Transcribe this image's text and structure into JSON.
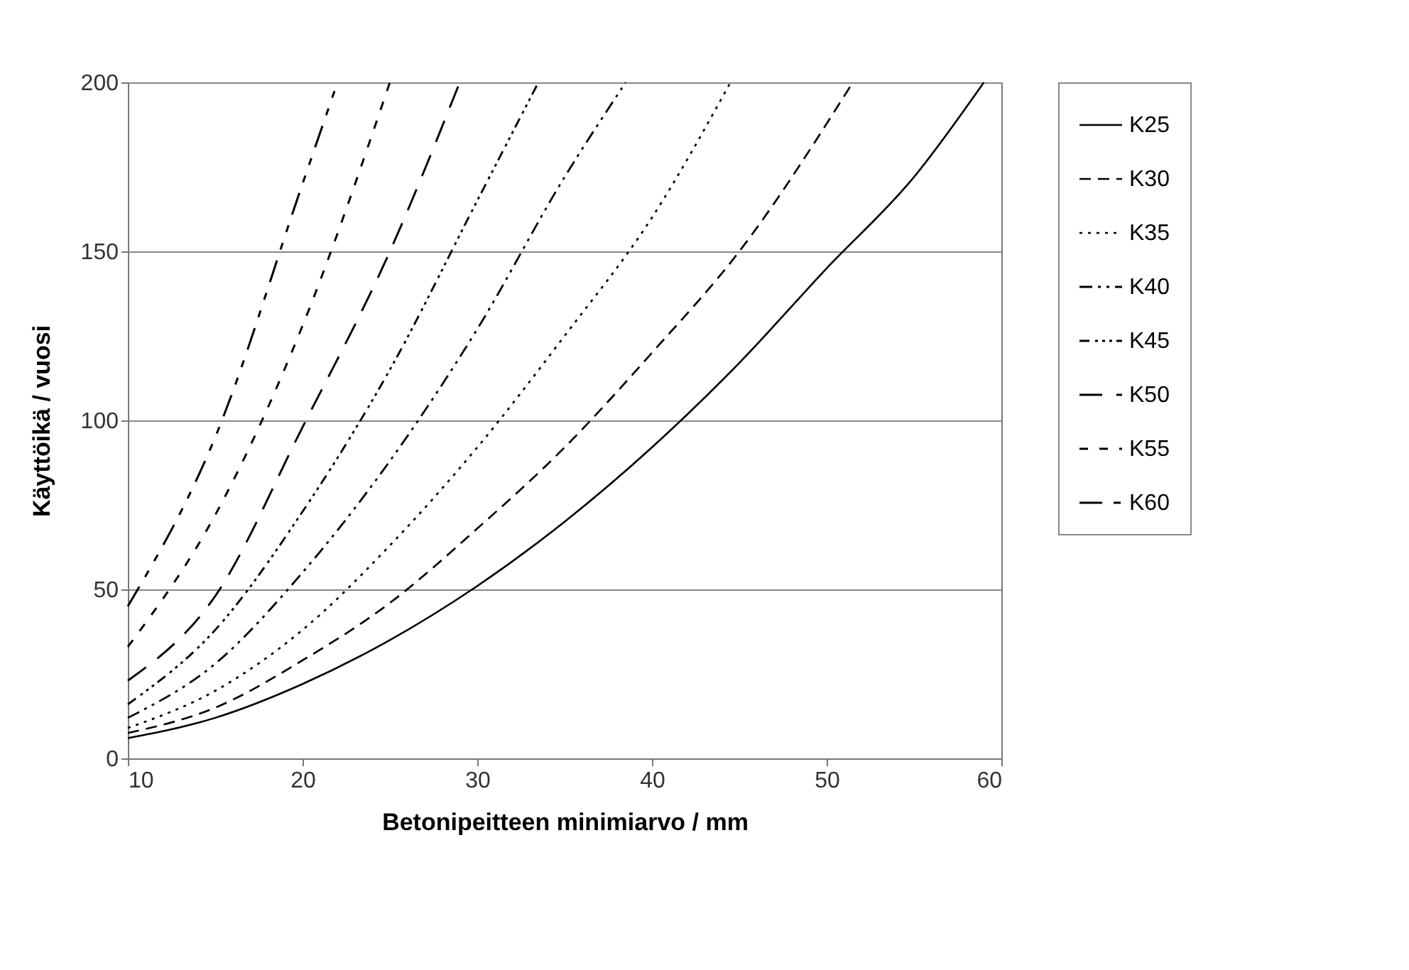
{
  "chart_data": {
    "type": "line",
    "xlabel": "Betonipeitteen minimiarvo / mm",
    "ylabel": "Käyttöikä / vuosi",
    "xlim": [
      10,
      60
    ],
    "xticks": [
      10,
      20,
      30,
      40,
      50,
      60
    ],
    "ylim": [
      0,
      200
    ],
    "yticks": [
      0,
      50,
      100,
      150,
      200
    ],
    "grid": "y",
    "legend": "right",
    "marker": "none",
    "series": [
      {
        "name": "K25",
        "color": "#000000",
        "line_style": "solid",
        "x": [
          10,
          15,
          20,
          25,
          30,
          35,
          40,
          45,
          50,
          55,
          59
        ],
        "values": [
          6,
          12,
          22,
          35,
          51,
          70,
          92,
          117,
          145,
          172,
          200
        ]
      },
      {
        "name": "K30",
        "color": "#000000",
        "line_style": "dashed",
        "x": [
          10,
          15,
          20,
          25,
          30,
          35,
          40,
          45,
          51.5
        ],
        "values": [
          7.5,
          15,
          29,
          46,
          68,
          92,
          120,
          150,
          200
        ]
      },
      {
        "name": "K35",
        "color": "#000000",
        "line_style": "dotted",
        "x": [
          10,
          15,
          20,
          25,
          30,
          35,
          40,
          44.5
        ],
        "values": [
          9,
          20,
          38,
          63,
          92,
          125,
          160,
          200
        ]
      },
      {
        "name": "K40",
        "color": "#000000",
        "line_style": "dashed",
        "x": [
          10,
          15,
          20,
          25,
          30,
          35,
          38.5
        ],
        "values": [
          12,
          28,
          55,
          88,
          127,
          172,
          200
        ]
      },
      {
        "name": "K45",
        "color": "#000000",
        "line_style": "dashed",
        "x": [
          10,
          15,
          20,
          25,
          30,
          33.5
        ],
        "values": [
          16,
          38,
          73,
          115,
          165,
          200
        ]
      },
      {
        "name": "K50",
        "color": "#000000",
        "line_style": "dashed",
        "x": [
          10,
          15,
          20,
          25,
          29
        ],
        "values": [
          23,
          48,
          98,
          150,
          200
        ]
      },
      {
        "name": "K55",
        "color": "#000000",
        "line_style": "dashed",
        "x": [
          10,
          15,
          20,
          25
        ],
        "values": [
          33,
          72,
          128,
          200
        ]
      },
      {
        "name": "K60",
        "color": "#000000",
        "line_style": "dashed",
        "x": [
          10,
          15,
          20,
          22
        ],
        "values": [
          45,
          95,
          170,
          200
        ]
      }
    ]
  }
}
